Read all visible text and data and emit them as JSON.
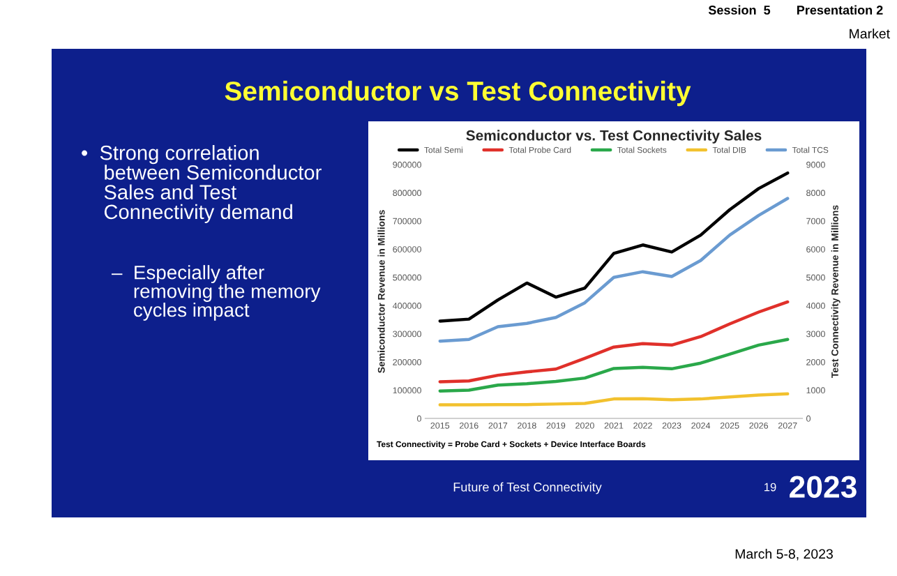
{
  "chart_data": {
    "type": "line",
    "title": "Semiconductor vs. Test Connectivity Sales",
    "ylabel": "Semiconductor Revenue in Millions",
    "y2label": "Test Connectivity Revenue in Millions",
    "categories": [
      "2015",
      "2016",
      "2017",
      "2018",
      "2019",
      "2020",
      "2021",
      "2022",
      "2023",
      "2024",
      "2025",
      "2026",
      "2027"
    ],
    "series": [
      {
        "name": "Total Semi",
        "color": "#000000",
        "values": [
          345000,
          352000,
          420000,
          480000,
          430000,
          462000,
          585000,
          615000,
          590000,
          650000,
          740000,
          815000,
          870000
        ]
      },
      {
        "name": "Total Probe Card",
        "color": "#e0302a",
        "axis": "y2",
        "values": [
          1300,
          1330,
          1530,
          1650,
          1750,
          2130,
          2530,
          2650,
          2600,
          2900,
          3350,
          3770,
          4130
        ]
      },
      {
        "name": "Total Sockets",
        "color": "#2aa84a",
        "axis": "y2",
        "values": [
          970,
          1000,
          1180,
          1230,
          1310,
          1430,
          1770,
          1810,
          1760,
          1960,
          2280,
          2600,
          2800
        ]
      },
      {
        "name": "Total DIB",
        "color": "#f2c12e",
        "axis": "y2",
        "values": [
          480,
          480,
          490,
          490,
          510,
          530,
          690,
          700,
          660,
          690,
          760,
          830,
          870
        ]
      },
      {
        "name": "Total TCS",
        "color": "#6a9bd1",
        "axis": "y2",
        "values": [
          2740,
          2800,
          3250,
          3370,
          3580,
          4100,
          5000,
          5200,
          5030,
          5600,
          6500,
          7200,
          7800
        ]
      }
    ],
    "ylim": [
      0,
      900000
    ],
    "yticks": [
      0,
      100000,
      200000,
      300000,
      400000,
      500000,
      600000,
      700000,
      800000,
      900000
    ],
    "y2lim": [
      0,
      9000
    ],
    "y2ticks": [
      0,
      1000,
      2000,
      3000,
      4000,
      5000,
      6000,
      7000,
      8000,
      9000
    ],
    "grid": false,
    "legend": "top",
    "marker": "none",
    "line_style": "solid",
    "annotations": [
      "Session  5",
      "Presentation 2",
      "Market",
      "Semiconductor vs Test Connectivity",
      "•  Strong correlation\n    between Semiconductor\n    Sales and Test\n    Connectivity demand",
      "–  Especially after\n    removing the memory\n    cycles impact",
      "Test Connectivity = Probe Card + Sockets + Device Interface Boards",
      "Future of Test Connectivity",
      "19",
      "2023",
      "March 5-8, 2023"
    ]
  }
}
